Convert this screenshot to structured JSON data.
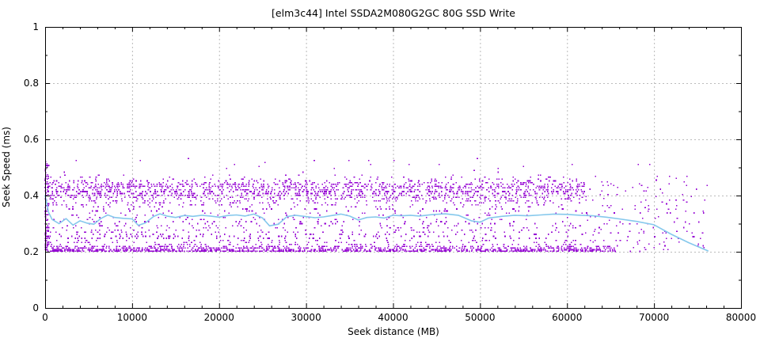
{
  "chart_data": {
    "type": "scatter",
    "title": "[elm3c44] Intel SSDA2M080G2GC 80G SSD Write",
    "xlabel": "Seek distance (MB)",
    "ylabel": "Seek Speed (ms)",
    "xlim": [
      0,
      80000
    ],
    "ylim": [
      0,
      1
    ],
    "xtick_step": 10000,
    "ytick_step": 0.2,
    "x_minor_step": 2000,
    "y_minor_step": 0.1,
    "grid": true,
    "legend_position": "none",
    "colors": {
      "scatter": "#9400d3",
      "trend": "#85c8ec",
      "grid": "#bbbbbb",
      "axis": "#000000",
      "text": "#000000",
      "background": "#ffffff"
    },
    "scatter": {
      "description": "seek speed samples (ms) vs seek distance (MB); dense quantized horizontal bands between 0.20 and 0.47 ms, sparse outliers to 0.54 ms, data thins out after ~62000 MB and ends near 76000 MB",
      "seed": 1337,
      "dot_size": 1.6,
      "bands": [
        {
          "y": 0.202,
          "n": 420,
          "xmax": 65500
        },
        {
          "y": 0.207,
          "n": 340,
          "xmax": 65500
        },
        {
          "y": 0.213,
          "n": 260,
          "xmax": 65500
        },
        {
          "y": 0.219,
          "n": 170,
          "xmax": 65000
        },
        {
          "y": 0.226,
          "n": 70,
          "xmax": 62000
        },
        {
          "y": 0.233,
          "n": 52,
          "xmax": 62000
        },
        {
          "y": 0.24,
          "n": 46,
          "xmax": 62000
        },
        {
          "y": 0.248,
          "n": 50,
          "xmax": 62000
        },
        {
          "y": 0.255,
          "n": 56,
          "xmax": 62000
        },
        {
          "y": 0.262,
          "n": 46,
          "xmax": 62000
        },
        {
          "y": 0.27,
          "n": 50,
          "xmax": 62000
        },
        {
          "y": 0.277,
          "n": 42,
          "xmax": 62000
        },
        {
          "y": 0.285,
          "n": 46,
          "xmax": 62000
        },
        {
          "y": 0.292,
          "n": 40,
          "xmax": 62000
        },
        {
          "y": 0.3,
          "n": 36,
          "xmax": 62000
        },
        {
          "y": 0.307,
          "n": 32,
          "xmax": 62000
        },
        {
          "y": 0.315,
          "n": 30,
          "xmax": 62000
        },
        {
          "y": 0.322,
          "n": 30,
          "xmax": 62000
        },
        {
          "y": 0.33,
          "n": 28,
          "xmax": 62000
        },
        {
          "y": 0.337,
          "n": 28,
          "xmax": 62000
        },
        {
          "y": 0.345,
          "n": 30,
          "xmax": 62000
        },
        {
          "y": 0.352,
          "n": 32,
          "xmax": 62000
        },
        {
          "y": 0.36,
          "n": 36,
          "xmax": 62000
        },
        {
          "y": 0.367,
          "n": 46,
          "xmax": 62000
        },
        {
          "y": 0.374,
          "n": 58,
          "xmax": 62000
        },
        {
          "y": 0.381,
          "n": 72,
          "xmax": 62000
        },
        {
          "y": 0.388,
          "n": 92,
          "xmax": 62000
        },
        {
          "y": 0.394,
          "n": 112,
          "xmax": 62000
        },
        {
          "y": 0.401,
          "n": 132,
          "xmax": 62000
        },
        {
          "y": 0.407,
          "n": 142,
          "xmax": 62000
        },
        {
          "y": 0.414,
          "n": 152,
          "xmax": 62000
        },
        {
          "y": 0.42,
          "n": 162,
          "xmax": 62000
        },
        {
          "y": 0.427,
          "n": 172,
          "xmax": 62000
        },
        {
          "y": 0.433,
          "n": 182,
          "xmax": 62000
        },
        {
          "y": 0.44,
          "n": 150,
          "xmax": 62000
        },
        {
          "y": 0.446,
          "n": 92,
          "xmax": 62000
        },
        {
          "y": 0.452,
          "n": 60,
          "xmax": 62000
        },
        {
          "y": 0.459,
          "n": 38,
          "xmax": 62000
        },
        {
          "y": 0.465,
          "n": 24,
          "xmax": 62000
        },
        {
          "y": 0.472,
          "n": 14,
          "xmax": 62000
        }
      ],
      "clouds": [
        {
          "name": "high-outliers",
          "x": [
            0,
            70000
          ],
          "y": [
            0.48,
            0.535
          ],
          "n": 25,
          "ystep": 0.007
        },
        {
          "name": "sparse-tail",
          "x": [
            62000,
            76200
          ],
          "y": [
            0.2,
            0.47
          ],
          "n": 160,
          "ystep": 0.0065
        },
        {
          "name": "left-edge-column",
          "x": [
            0,
            450
          ],
          "y": [
            0.2,
            0.52
          ],
          "n": 110,
          "ystep": 0.0065
        }
      ]
    },
    "trend": {
      "name": "smoothed average seek speed",
      "points": [
        [
          0,
          0.4
        ],
        [
          400,
          0.34
        ],
        [
          800,
          0.315
        ],
        [
          1600,
          0.3
        ],
        [
          2400,
          0.318
        ],
        [
          3200,
          0.295
        ],
        [
          4000,
          0.31
        ],
        [
          4800,
          0.302
        ],
        [
          5600,
          0.298
        ],
        [
          6400,
          0.318
        ],
        [
          7200,
          0.331
        ],
        [
          8000,
          0.322
        ],
        [
          9000,
          0.319
        ],
        [
          10000,
          0.317
        ],
        [
          10700,
          0.294
        ],
        [
          11500,
          0.302
        ],
        [
          12500,
          0.326
        ],
        [
          13200,
          0.335
        ],
        [
          14000,
          0.327
        ],
        [
          15000,
          0.322
        ],
        [
          16000,
          0.329
        ],
        [
          17000,
          0.326
        ],
        [
          18000,
          0.33
        ],
        [
          19000,
          0.327
        ],
        [
          20000,
          0.323
        ],
        [
          21000,
          0.329
        ],
        [
          22000,
          0.331
        ],
        [
          23000,
          0.327
        ],
        [
          24000,
          0.334
        ],
        [
          25000,
          0.32
        ],
        [
          25800,
          0.292
        ],
        [
          26800,
          0.298
        ],
        [
          27800,
          0.325
        ],
        [
          28800,
          0.33
        ],
        [
          30000,
          0.325
        ],
        [
          31000,
          0.321
        ],
        [
          32000,
          0.324
        ],
        [
          33000,
          0.329
        ],
        [
          34000,
          0.334
        ],
        [
          35000,
          0.327
        ],
        [
          36000,
          0.313
        ],
        [
          37000,
          0.322
        ],
        [
          38000,
          0.324
        ],
        [
          39000,
          0.32
        ],
        [
          40000,
          0.33
        ],
        [
          41000,
          0.328
        ],
        [
          42000,
          0.33
        ],
        [
          43000,
          0.327
        ],
        [
          44500,
          0.332
        ],
        [
          46000,
          0.335
        ],
        [
          47500,
          0.33
        ],
        [
          49000,
          0.31
        ],
        [
          50000,
          0.305
        ],
        [
          51000,
          0.32
        ],
        [
          52500,
          0.326
        ],
        [
          54000,
          0.33
        ],
        [
          55500,
          0.328
        ],
        [
          57000,
          0.331
        ],
        [
          58500,
          0.334
        ],
        [
          60000,
          0.333
        ],
        [
          61500,
          0.33
        ],
        [
          63000,
          0.328
        ],
        [
          64500,
          0.323
        ],
        [
          66000,
          0.317
        ],
        [
          68000,
          0.308
        ],
        [
          70000,
          0.296
        ],
        [
          72000,
          0.262
        ],
        [
          74000,
          0.232
        ],
        [
          76200,
          0.203
        ]
      ]
    }
  }
}
